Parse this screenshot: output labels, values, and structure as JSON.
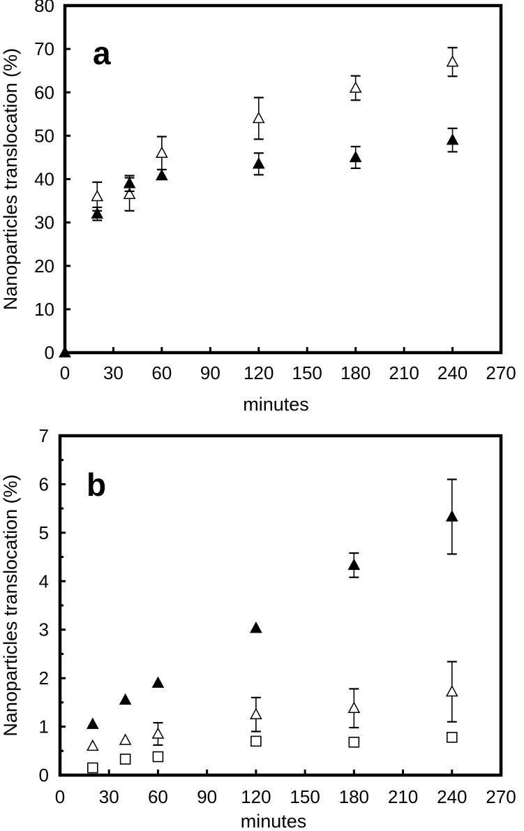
{
  "chart_data": [
    {
      "type": "scatter",
      "panel_label": "a",
      "xlabel": "minutes",
      "ylabel": "Nanoparticles  translocation  (%)",
      "xlim": [
        0,
        270
      ],
      "ylim": [
        0,
        80
      ],
      "xticks": [
        0,
        30,
        60,
        90,
        120,
        150,
        180,
        210,
        240,
        270
      ],
      "yticks": [
        0,
        10,
        20,
        30,
        40,
        50,
        60,
        70,
        80
      ],
      "series": [
        {
          "marker": "open-triangle",
          "points": [
            {
              "x": 20,
              "y": 36.0,
              "err": 3.3
            },
            {
              "x": 40,
              "y": 36.5,
              "err": 3.8
            },
            {
              "x": 60,
              "y": 46.0,
              "err": 3.8
            },
            {
              "x": 120,
              "y": 54.0,
              "err": 4.8
            },
            {
              "x": 180,
              "y": 61.0,
              "err": 2.8
            },
            {
              "x": 240,
              "y": 67.0,
              "err": 3.3
            }
          ]
        },
        {
          "marker": "filled-triangle",
          "points": [
            {
              "x": 0,
              "y": 0,
              "err": 0
            },
            {
              "x": 20,
              "y": 32.0,
              "err": 1.5
            },
            {
              "x": 40,
              "y": 39.0,
              "err": 1.8
            },
            {
              "x": 60,
              "y": 40.8,
              "err": 0
            },
            {
              "x": 120,
              "y": 43.5,
              "err": 2.5
            },
            {
              "x": 180,
              "y": 45.0,
              "err": 2.5
            },
            {
              "x": 240,
              "y": 49.0,
              "err": 2.7
            }
          ]
        }
      ]
    },
    {
      "type": "scatter",
      "panel_label": "b",
      "xlabel": "minutes",
      "ylabel": "Nanoparticles  translocation  (%)",
      "xlim": [
        0,
        270
      ],
      "ylim": [
        0,
        7
      ],
      "xticks": [
        0,
        30,
        60,
        90,
        120,
        150,
        180,
        210,
        240,
        270
      ],
      "yticks": [
        0,
        1,
        2,
        3,
        4,
        5,
        6,
        7
      ],
      "series": [
        {
          "marker": "filled-triangle",
          "points": [
            {
              "x": 20,
              "y": 1.05,
              "err": 0
            },
            {
              "x": 40,
              "y": 1.55,
              "err": 0
            },
            {
              "x": 60,
              "y": 1.9,
              "err": 0
            },
            {
              "x": 120,
              "y": 3.03,
              "err": 0
            },
            {
              "x": 180,
              "y": 4.33,
              "err": 0.25
            },
            {
              "x": 240,
              "y": 5.33,
              "err": 0.77
            }
          ]
        },
        {
          "marker": "open-triangle",
          "points": [
            {
              "x": 20,
              "y": 0.6,
              "err": 0
            },
            {
              "x": 40,
              "y": 0.72,
              "err": 0
            },
            {
              "x": 60,
              "y": 0.85,
              "err": 0.23
            },
            {
              "x": 120,
              "y": 1.25,
              "err": 0.35
            },
            {
              "x": 180,
              "y": 1.38,
              "err": 0.4
            },
            {
              "x": 240,
              "y": 1.72,
              "err": 0.62
            }
          ]
        },
        {
          "marker": "open-square",
          "points": [
            {
              "x": 20,
              "y": 0.15,
              "err": 0
            },
            {
              "x": 40,
              "y": 0.33,
              "err": 0
            },
            {
              "x": 60,
              "y": 0.38,
              "err": 0
            },
            {
              "x": 120,
              "y": 0.7,
              "err": 0
            },
            {
              "x": 180,
              "y": 0.68,
              "err": 0
            },
            {
              "x": 240,
              "y": 0.78,
              "err": 0
            }
          ]
        }
      ]
    }
  ]
}
